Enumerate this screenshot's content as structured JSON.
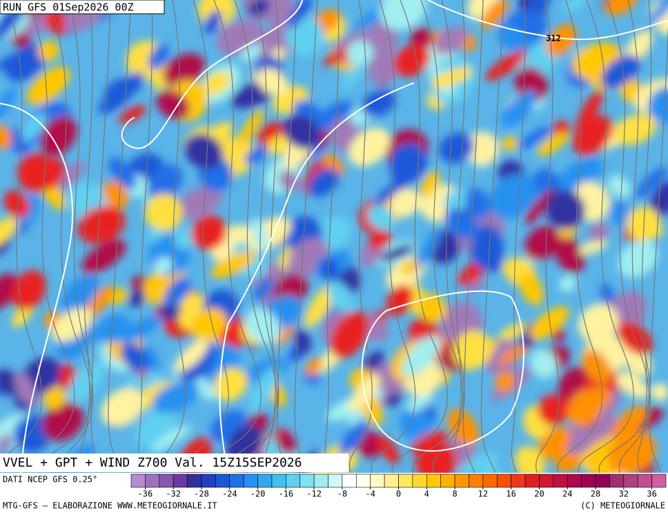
{
  "header": {
    "run": "RUN GFS 01Sep2026 00Z"
  },
  "map": {
    "contour_label": "312"
  },
  "title": "VVEL + GPT + WIND Z700 Val. 15Z15SEP2026",
  "source": "DATI NCEP GFS 0.25°",
  "colorbar": {
    "range": [
      -38,
      38
    ],
    "ticks": [
      -36,
      -32,
      -28,
      -24,
      -20,
      -16,
      -12,
      -8,
      -4,
      0,
      4,
      8,
      12,
      16,
      20,
      24,
      28,
      32,
      36
    ]
  },
  "footer": {
    "left": "MTG-GFS — ELABORAZIONE WWW.METEOGIORNALE.IT",
    "right": "(C) METEOGIORNALE"
  }
}
